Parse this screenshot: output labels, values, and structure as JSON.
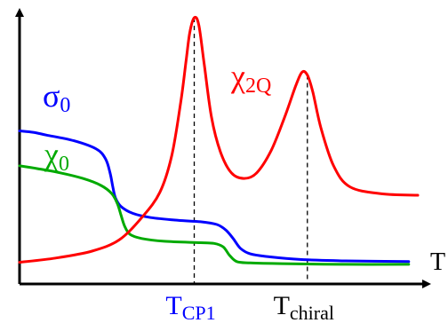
{
  "chart_data": {
    "type": "line",
    "title": "",
    "xlabel": "T",
    "ylabel": "",
    "grid": false,
    "legend": "none",
    "series": [
      {
        "name": "σ0",
        "label_main": "σ",
        "label_sub": "0",
        "color": "#0000ff",
        "points": [
          [
            0,
            100
          ],
          [
            15,
            99
          ],
          [
            30,
            97
          ],
          [
            60,
            93
          ],
          [
            85,
            87
          ],
          [
            95,
            80
          ],
          [
            100,
            70
          ],
          [
            103,
            60
          ],
          [
            106,
            52
          ],
          [
            112,
            46
          ],
          [
            125,
            41
          ],
          [
            145,
            38
          ],
          [
            175,
            36
          ],
          [
            200,
            35
          ],
          [
            218,
            33
          ],
          [
            228,
            29
          ],
          [
            236,
            23
          ],
          [
            244,
            16
          ],
          [
            255,
            12
          ],
          [
            275,
            10
          ],
          [
            310,
            8
          ],
          [
            360,
            7
          ],
          [
            430,
            6.5
          ]
        ]
      },
      {
        "name": "χ0",
        "label_main": "χ",
        "label_sub": "0",
        "color": "#00aa00",
        "points": [
          [
            0,
            75
          ],
          [
            20,
            73
          ],
          [
            45,
            70
          ],
          [
            70,
            66
          ],
          [
            90,
            61
          ],
          [
            102,
            55
          ],
          [
            108,
            48
          ],
          [
            112,
            40
          ],
          [
            116,
            32
          ],
          [
            122,
            26
          ],
          [
            135,
            23
          ],
          [
            160,
            21
          ],
          [
            200,
            20
          ],
          [
            215,
            19.5
          ],
          [
            225,
            17
          ],
          [
            232,
            11
          ],
          [
            240,
            6.5
          ],
          [
            255,
            5.5
          ],
          [
            290,
            5
          ],
          [
            360,
            4.5
          ],
          [
            430,
            4.5
          ]
        ]
      },
      {
        "name": "χ2Q",
        "label_main": "χ",
        "label_sub": "2Q",
        "color": "#ff0000",
        "points": [
          [
            0,
            6
          ],
          [
            40,
            9
          ],
          [
            80,
            14
          ],
          [
            110,
            22
          ],
          [
            135,
            38
          ],
          [
            155,
            56
          ],
          [
            168,
            82
          ],
          [
            178,
            120
          ],
          [
            184,
            150
          ],
          [
            188,
            170
          ],
          [
            193,
            181
          ],
          [
            198,
            176
          ],
          [
            204,
            148
          ],
          [
            212,
            110
          ],
          [
            222,
            85
          ],
          [
            234,
            70
          ],
          [
            248,
            66
          ],
          [
            262,
            70
          ],
          [
            278,
            86
          ],
          [
            293,
            110
          ],
          [
            305,
            132
          ],
          [
            312,
            142
          ],
          [
            318,
            140
          ],
          [
            324,
            128
          ],
          [
            333,
            102
          ],
          [
            347,
            75
          ],
          [
            365,
            60
          ],
          [
            400,
            55
          ],
          [
            440,
            54
          ]
        ]
      }
    ],
    "markers": [
      {
        "label_main": "T",
        "label_sub": "CP1",
        "color": "#0000ff",
        "x": 193
      },
      {
        "label_main": "T",
        "label_sub": "chiral",
        "color": "#000000",
        "x": 318
      }
    ],
    "xlim": [
      0,
      440
    ],
    "ylim": [
      0,
      181
    ]
  }
}
